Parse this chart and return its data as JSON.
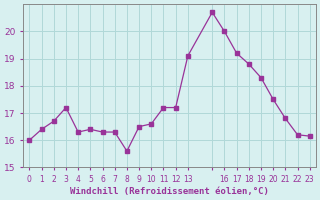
{
  "x": [
    0,
    1,
    2,
    3,
    4,
    5,
    6,
    7,
    8,
    9,
    10,
    11,
    12,
    13,
    15,
    16,
    17,
    18,
    19,
    20,
    21,
    22,
    23
  ],
  "y": [
    16.0,
    16.4,
    16.7,
    17.2,
    16.3,
    16.4,
    16.3,
    16.3,
    15.6,
    16.5,
    16.6,
    17.2,
    17.2,
    19.1,
    20.7,
    20.0,
    19.2,
    18.8,
    18.3,
    17.5,
    16.8,
    16.2,
    16.15
  ],
  "line_color": "#993399",
  "marker_color": "#993399",
  "bg_color": "#d8f0f0",
  "grid_color": "#b0d8d8",
  "xlabel": "Windchill (Refroidissement éolien,°C)",
  "xlabel_color": "#993399",
  "tick_color": "#993399",
  "ylim": [
    15,
    21
  ],
  "yticks": [
    15,
    16,
    17,
    18,
    19,
    20
  ],
  "xtick_positions": [
    0,
    1,
    2,
    3,
    4,
    5,
    6,
    7,
    8,
    9,
    10,
    11,
    12,
    13,
    15,
    16,
    17,
    18,
    19,
    20,
    21,
    22,
    23
  ],
  "xtick_labels": [
    "0",
    "1",
    "2",
    "3",
    "4",
    "5",
    "6",
    "7",
    "8",
    "9",
    "10",
    "11",
    "12",
    "13",
    "",
    "16",
    "17",
    "18",
    "19",
    "20",
    "21",
    "22",
    "23"
  ]
}
